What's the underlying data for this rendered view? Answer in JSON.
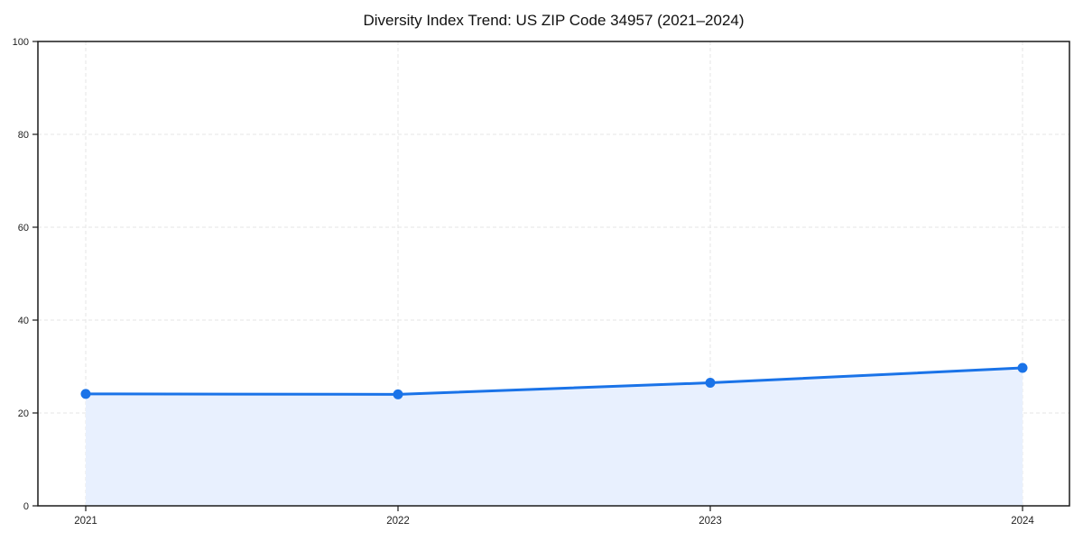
{
  "chart_data": {
    "type": "area",
    "title": "Diversity Index Trend: US ZIP Code 34957 (2021–2024)",
    "categories": [
      "2021",
      "2022",
      "2023",
      "2024"
    ],
    "series": [
      {
        "name": "Diversity Index",
        "values": [
          24.1,
          24.0,
          26.5,
          29.7
        ]
      }
    ],
    "xlabel": "",
    "ylabel": "",
    "ylim": [
      0,
      100
    ],
    "yticks": [
      0,
      20,
      40,
      60,
      80,
      100
    ],
    "grid": "dashed-both-axes",
    "legend_position": "none",
    "colors": {
      "line": "#1a73e8",
      "marker": "#1a73e8",
      "fill": "#e8f0fe",
      "gridline": "#e6e6e6",
      "spine": "#1a1a1a",
      "tick_label": "#1f1f1f",
      "title": "#111111",
      "background": "#ffffff"
    }
  }
}
